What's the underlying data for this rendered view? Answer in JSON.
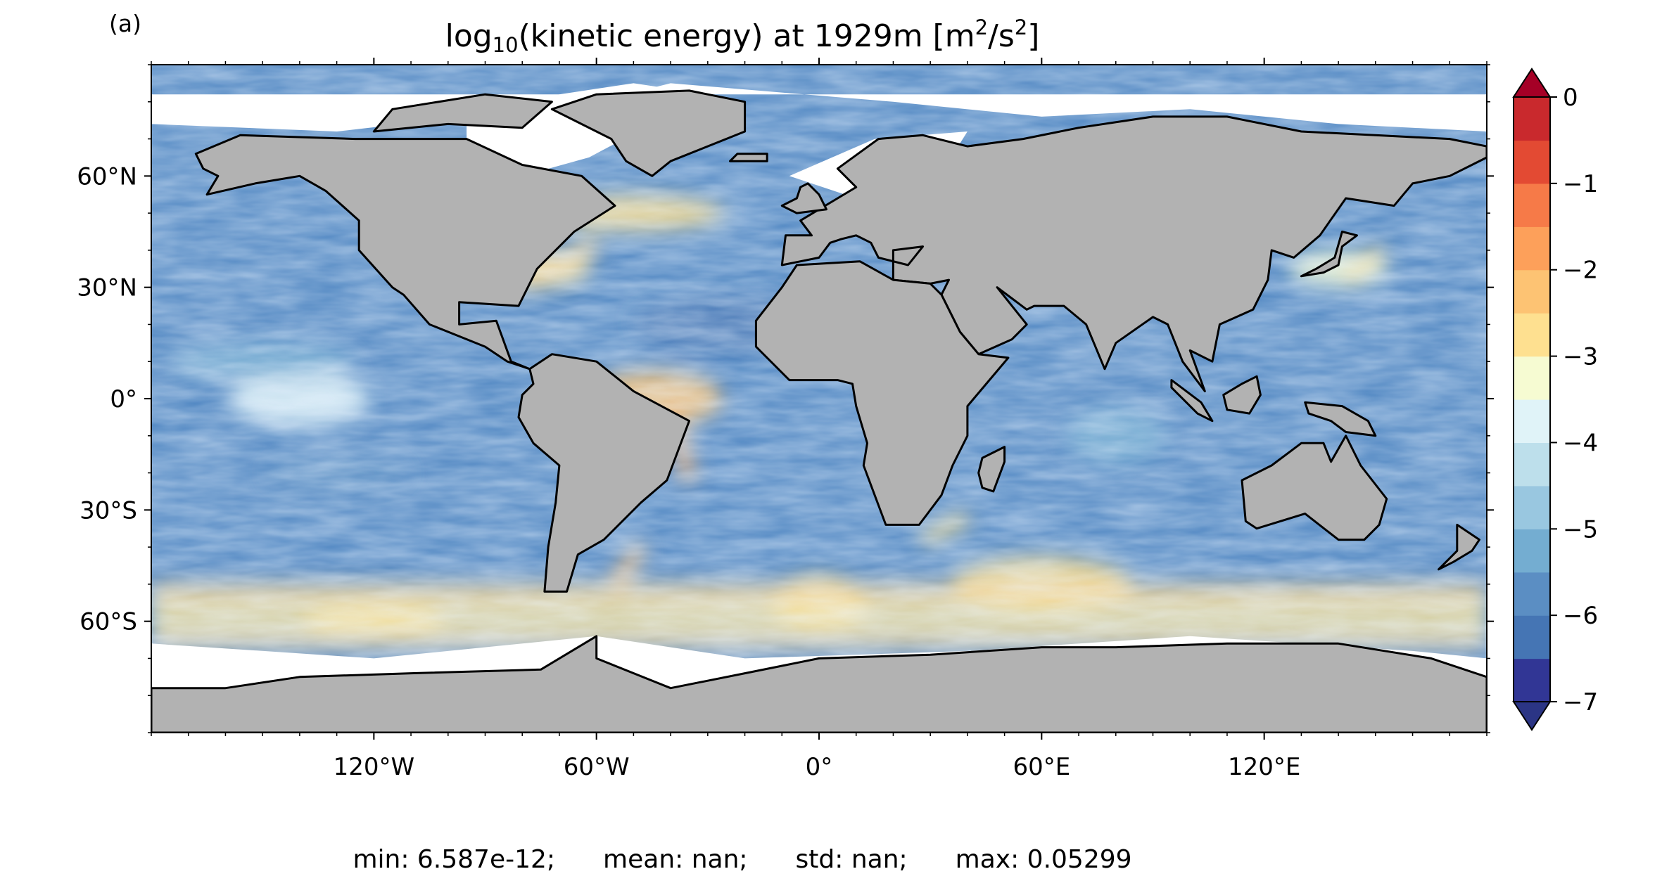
{
  "figure": {
    "panel_label": "(a)",
    "title": {
      "prefix": "log",
      "prefix_sub": "10",
      "main": "(kinetic energy) at 1929m [m",
      "sup1": "2",
      "mid": "/s",
      "sup2": "2",
      "suffix": "]"
    },
    "stats": {
      "min": "min: 6.587e-12;",
      "mean": "mean: nan;",
      "std": "std: nan;",
      "max": "max: 0.05299"
    }
  },
  "chart_data": {
    "type": "heatmap",
    "projection": "plate carree",
    "variable": "log10(kinetic energy) at 1929m",
    "units": "m2/s2",
    "lon_range": [
      -180,
      180
    ],
    "lat_range": [
      -90,
      90
    ],
    "lat_ticks": [
      {
        "value": 60,
        "label": "60°N"
      },
      {
        "value": 30,
        "label": "30°N"
      },
      {
        "value": 0,
        "label": "0°"
      },
      {
        "value": -30,
        "label": "30°S"
      },
      {
        "value": -60,
        "label": "60°S"
      }
    ],
    "lon_ticks": [
      {
        "value": -120,
        "label": "120°W"
      },
      {
        "value": -60,
        "label": "60°W"
      },
      {
        "value": 0,
        "label": "0°"
      },
      {
        "value": 60,
        "label": "60°E"
      },
      {
        "value": 120,
        "label": "120°E"
      }
    ],
    "colorbar": {
      "min": -7,
      "max": 0,
      "step": 0.5,
      "extend": "both",
      "ticks": [
        {
          "value": 0,
          "label": "0"
        },
        {
          "value": -1,
          "label": "−1"
        },
        {
          "value": -2,
          "label": "−2"
        },
        {
          "value": -3,
          "label": "−3"
        },
        {
          "value": -4,
          "label": "−4"
        },
        {
          "value": -5,
          "label": "−5"
        },
        {
          "value": -6,
          "label": "−6"
        },
        {
          "value": -7,
          "label": "−7"
        }
      ],
      "colors": [
        "#313695",
        "#4575b4",
        "#5b8ec3",
        "#74add1",
        "#99c7e0",
        "#bddfeb",
        "#e0f3f8",
        "#f6fbd2",
        "#fee090",
        "#fdc373",
        "#fda05a",
        "#f67a48",
        "#e34a33",
        "#c9292d"
      ],
      "extend_low_color": "#2b3585",
      "extend_high_color": "#a50026"
    },
    "land_color": "#b2b2b2",
    "undefined_ocean_color": "#ffffff",
    "field_pattern": [
      {
        "lon": -75,
        "lat": 35,
        "value": -3
      },
      {
        "lon": -45,
        "lat": 0,
        "value": -2.5
      },
      {
        "lon": -50,
        "lat": 50,
        "value": -3
      },
      {
        "lon": 0,
        "lat": -55,
        "value": -3
      },
      {
        "lon": -120,
        "lat": -60,
        "value": -3
      },
      {
        "lon": 60,
        "lat": -50,
        "value": -3
      },
      {
        "lon": 140,
        "lat": 35,
        "value": -3.5
      },
      {
        "lon": -140,
        "lat": 0,
        "value": -4
      },
      {
        "lon": -150,
        "lat": 10,
        "value": -5.5
      },
      {
        "lon": 80,
        "lat": -10,
        "value": -5.5
      },
      {
        "lon": -130,
        "lat": -20,
        "value": -6
      },
      {
        "lon": -25,
        "lat": 20,
        "value": -6.5
      }
    ]
  }
}
